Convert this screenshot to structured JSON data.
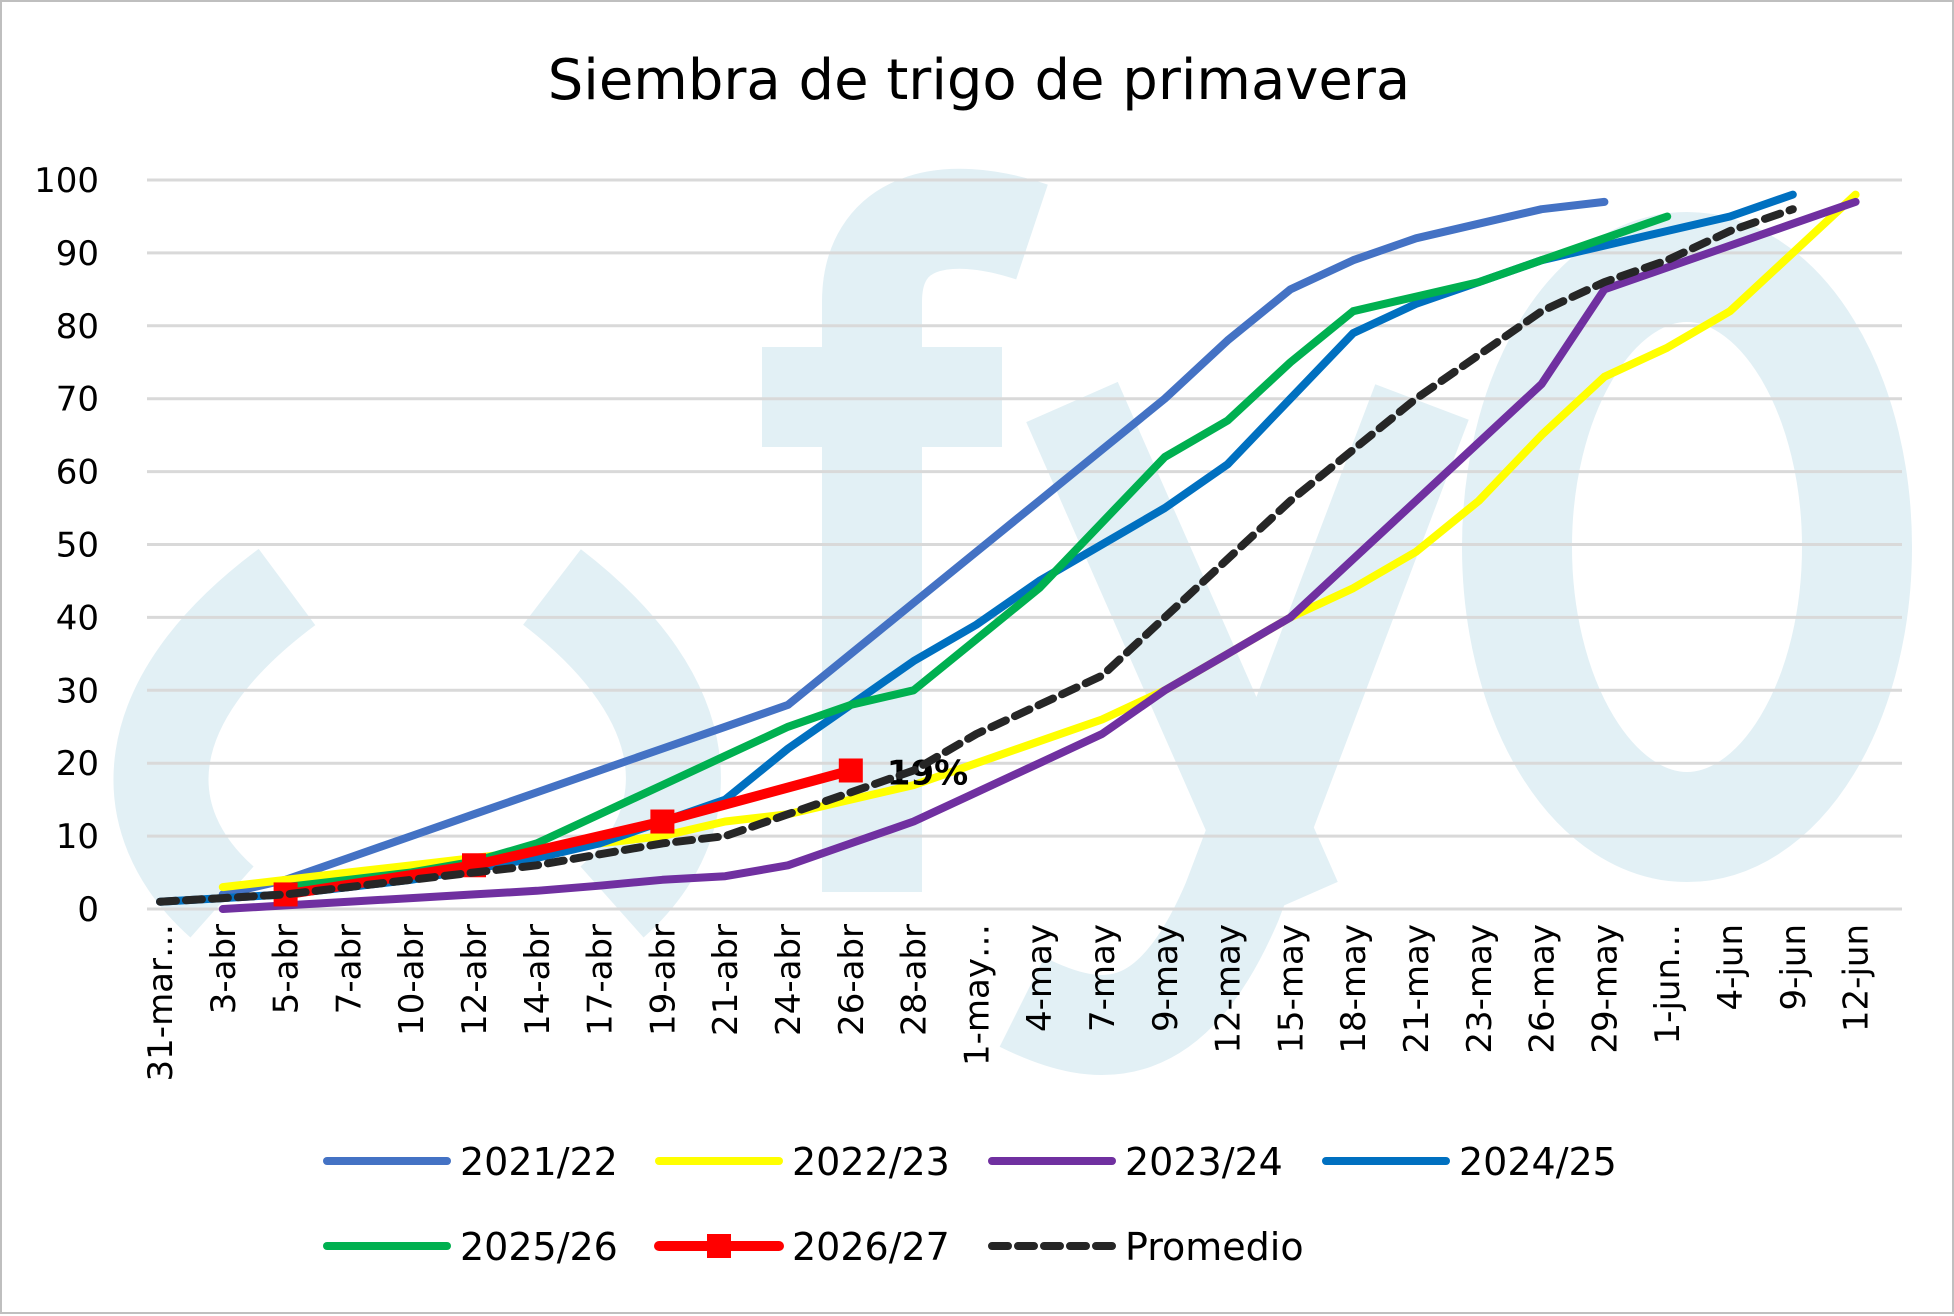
{
  "chart_data": {
    "type": "line",
    "title": "Siembra de trigo de primavera",
    "xlabel": "",
    "ylabel": "",
    "ylim": [
      0,
      100
    ],
    "yticks": [
      0,
      10,
      20,
      30,
      40,
      50,
      60,
      70,
      80,
      90,
      100
    ],
    "grid": true,
    "legend_position": "bottom",
    "watermark": "fyo",
    "categories": [
      "31-mar…",
      "3-abr",
      "5-abr",
      "7-abr",
      "10-abr",
      "12-abr",
      "14-abr",
      "17-abr",
      "19-abr",
      "21-abr",
      "24-abr",
      "26-abr",
      "28-abr",
      "1-may…",
      "4-may",
      "7-may",
      "9-may",
      "12-may",
      "15-may",
      "18-may",
      "21-may",
      "23-may",
      "26-may",
      "29-may",
      "1-jun…",
      "4-jun",
      "9-jun",
      "12-jun"
    ],
    "series": [
      {
        "name": "2021/22",
        "color": "#4472C4",
        "dashed": false,
        "markers": false,
        "values": [
          null,
          2,
          4,
          7,
          10,
          13,
          16,
          19,
          22,
          25,
          28,
          35,
          42,
          49,
          56,
          63,
          70,
          78,
          85,
          89,
          92,
          94,
          96,
          97,
          null,
          null,
          null,
          null
        ]
      },
      {
        "name": "2022/23",
        "color": "#FFFF00",
        "dashed": false,
        "markers": false,
        "values": [
          null,
          3,
          4,
          5,
          6,
          7,
          8,
          9,
          10,
          12,
          13,
          15,
          17,
          20,
          23,
          26,
          30,
          35,
          40,
          44,
          49,
          56,
          65,
          73,
          77,
          82,
          90,
          98
        ]
      },
      {
        "name": "2023/24",
        "color": "#7030A0",
        "dashed": false,
        "markers": false,
        "values": [
          null,
          0,
          0.5,
          1,
          1.5,
          2,
          2.5,
          3.2,
          4,
          4.5,
          6,
          9,
          12,
          16,
          20,
          24,
          30,
          35,
          40,
          48,
          56,
          64,
          72,
          85,
          88,
          91,
          94,
          97
        ]
      },
      {
        "name": "2024/25",
        "color": "#0070C0",
        "dashed": false,
        "markers": false,
        "values": [
          1,
          1.5,
          2,
          3,
          4,
          5.5,
          7,
          9,
          12,
          15,
          22,
          28,
          34,
          39,
          45,
          50,
          55,
          61,
          70,
          79,
          83,
          86,
          89,
          91,
          93,
          95,
          98,
          null
        ]
      },
      {
        "name": "2025/26",
        "color": "#00B050",
        "dashed": false,
        "markers": false,
        "values": [
          null,
          null,
          3,
          4,
          5,
          6.5,
          9,
          13,
          17,
          21,
          25,
          28,
          30,
          37,
          44,
          53,
          62,
          67,
          75,
          82,
          84,
          86,
          89,
          92,
          95,
          null,
          null,
          null
        ]
      },
      {
        "name": "2026/27",
        "color": "#FF0000",
        "dashed": false,
        "markers": true,
        "values": [
          null,
          null,
          2,
          null,
          null,
          6,
          null,
          null,
          12,
          null,
          null,
          19,
          null,
          null,
          null,
          null,
          null,
          null,
          null,
          null,
          null,
          null,
          null,
          null,
          null,
          null,
          null,
          null
        ],
        "data_label": {
          "category": "26-abr",
          "text": "19%"
        }
      },
      {
        "name": "Promedio",
        "color": "#262626",
        "dashed": true,
        "markers": false,
        "values": [
          1,
          1.5,
          2,
          3,
          4,
          5,
          6,
          7.5,
          9,
          10,
          13,
          16,
          19,
          24,
          28,
          32,
          40,
          48,
          56,
          63,
          70,
          76,
          82,
          86,
          89,
          93,
          96,
          null
        ]
      }
    ]
  }
}
